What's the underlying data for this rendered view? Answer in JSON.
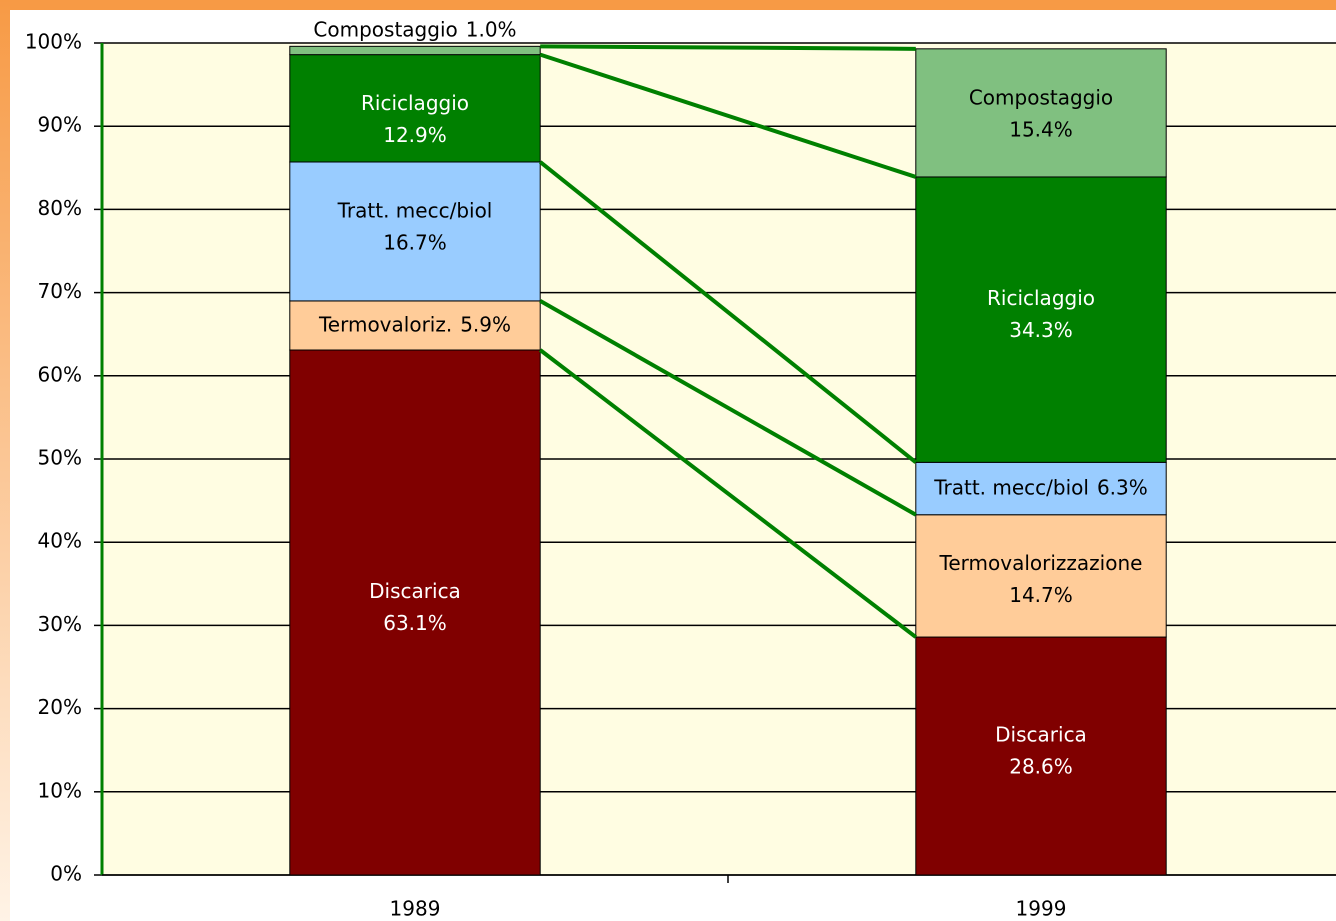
{
  "chart_data": {
    "type": "stacked_bar",
    "categories": [
      "1989",
      "1999"
    ],
    "series": [
      {
        "labels": [
          "Discarica",
          "Discarica"
        ],
        "color": "#800000",
        "values": [
          63.1,
          28.6
        ],
        "value_labels": [
          "63.1%",
          "28.6%"
        ]
      },
      {
        "labels": [
          "Termovaloriz.",
          "Termovalorizzazione"
        ],
        "color": "#ffcc99",
        "values": [
          5.9,
          14.7
        ],
        "value_labels": [
          "5.9%",
          "14.7%"
        ]
      },
      {
        "labels": [
          "Tratt. mecc/biol",
          "Tratt. mecc/biol"
        ],
        "color": "#99ccff",
        "values": [
          16.7,
          6.3
        ],
        "value_labels": [
          "16.7%",
          "6.3%"
        ]
      },
      {
        "labels": [
          "Riciclaggio",
          "Riciclaggio"
        ],
        "color": "#008000",
        "values": [
          12.9,
          34.3
        ],
        "value_labels": [
          "12.9%",
          "34.3%"
        ]
      },
      {
        "labels": [
          "Compostaggio",
          "Compostaggio"
        ],
        "color": "#80c080",
        "values": [
          1.0,
          15.4
        ],
        "value_labels": [
          "1.0%",
          "15.4%"
        ]
      }
    ],
    "ylim": [
      0,
      100
    ],
    "yticks": [
      {
        "value": 0,
        "label": "0%"
      },
      {
        "value": 10,
        "label": "10%"
      },
      {
        "value": 20,
        "label": "20%"
      },
      {
        "value": 30,
        "label": "30%"
      },
      {
        "value": 40,
        "label": "40%"
      },
      {
        "value": 50,
        "label": "50%"
      },
      {
        "value": 60,
        "label": "60%"
      },
      {
        "value": 70,
        "label": "70%"
      },
      {
        "value": 80,
        "label": "80%"
      },
      {
        "value": 90,
        "label": "90%"
      },
      {
        "value": 100,
        "label": "100%"
      }
    ],
    "grid": true,
    "series_lines": true,
    "series_line_color": "#008000"
  }
}
